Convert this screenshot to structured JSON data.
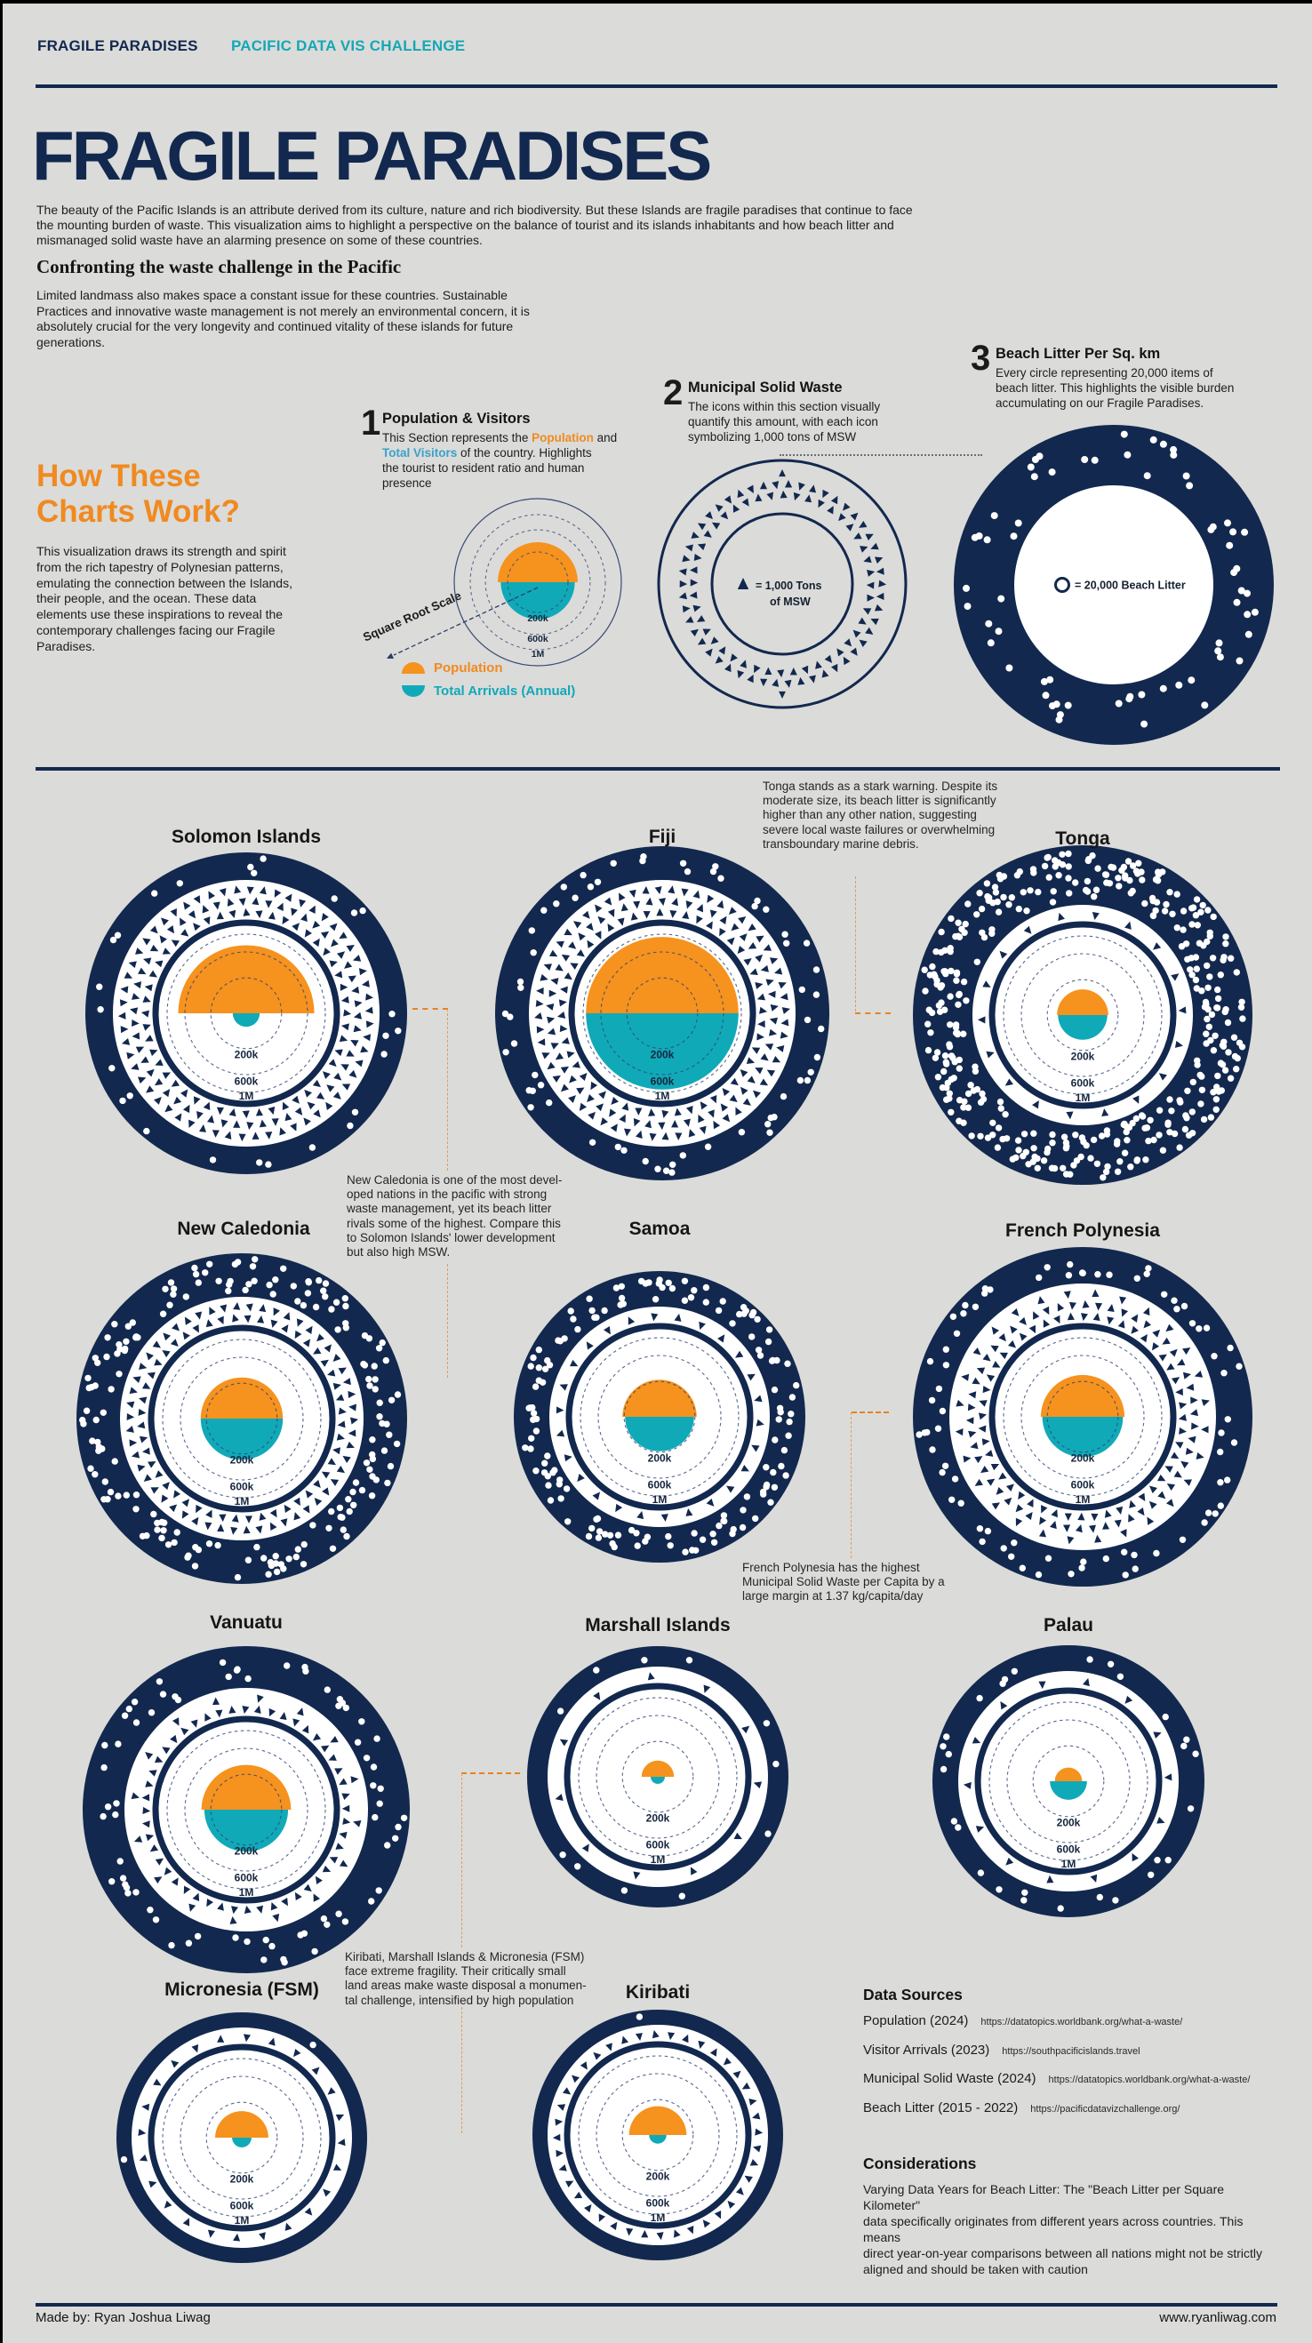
{
  "page": {
    "colors": {
      "navy": "#12284e",
      "orange": "#f6921e",
      "teal": "#10a9b8",
      "background": "#dbdbd9",
      "accent_orange_text": "#f08a20",
      "accent_teal_text": "#14a8b6",
      "connector_orange": "#e8821e"
    }
  },
  "header": {
    "brand": "FRAGILE PARADISES",
    "challenge": "PACIFIC DATA VIS CHALLENGE",
    "title": "FRAGILE PARADISES",
    "intro": "The beauty of the Pacific Islands is an attribute derived from its culture, nature and rich biodiversity. But these Islands are fragile paradises that continue to face\nthe mounting burden of waste. This visualization aims to highlight a perspective on the balance of tourist and its islands inhabitants and how beach litter and\nmismanaged solid waste have an alarming presence on some of these countries."
  },
  "confronting": {
    "heading": "Confronting the waste challenge in the Pacific",
    "body": "Limited landmass also makes space a constant issue for these countries. Sustainable\nPractices and innovative waste management is not merely an environmental concern, it is\nabsolutely crucial for the very longevity and continued vitality of these islands for future\ngenerations."
  },
  "how": {
    "heading": "How These\nCharts Work?",
    "body": "This visualization draws its strength and spirit\nfrom the rich tapestry of Polynesian patterns,\nemulating the connection between the Islands,\ntheir people, and the ocean. These data\nelements use these inspirations to reveal the\ncontemporary challenges facing our Fragile\nParadises."
  },
  "sections": {
    "one": {
      "num": "1",
      "title": "Population & Visitors",
      "b1": "This Section represents the ",
      "pop": "Population",
      "b2": " and\n",
      "vis": "Total Visitors",
      "b3": " of the country. Highlights\nthe tourist to resident ratio and human\npresence"
    },
    "two": {
      "num": "2",
      "title": "Municipal Solid Waste",
      "body": "The icons within this section visually\nquantify this amount, with each icon\nsymbolizing 1,000 tons of MSW"
    },
    "three": {
      "num": "3",
      "title": "Beach Litter Per Sq. km",
      "body": "Every circle representing 20,000 items of\nbeach litter. This highlights the visible burden\naccumulating on our Fragile Paradises."
    }
  },
  "legend": {
    "population": "Population",
    "arrivals": "Total Arrivals (Annual)",
    "sqrt_scale": "Square Root Scale",
    "msw_label": "=  1,000 Tons\nof MSW",
    "litter_label": "=  20,000 Beach Litter"
  },
  "annotations": {
    "tonga": "Tonga stands as a stark warning. Despite its\nmoderate size, its beach litter is significantly\nhigher than any other nation, suggesting\nsevere local waste failures or overwhelming\ntransboundary marine debris.",
    "new_caledonia": "New Caledonia is one of the most devel-\noped nations in the pacific with strong\nwaste management, yet its beach litter\nrivals some of the highest. Compare this\nto Solomon Islands' lower development\nbut also high MSW.",
    "french_polynesia": "French Polynesia has the highest\nMunicipal Solid Waste per Capita by a\nlarge margin at 1.37 kg/capita/day",
    "kiribati": "Kiribati, Marshall Islands & Micronesia (FSM)\nface extreme fragility. Their critically small\nland areas make waste disposal a monumen-\ntal challenge, intensified by high population"
  },
  "chart_data": {
    "type": "radial",
    "scale": "square-root",
    "ring_labels": [
      "200k",
      "600k",
      "1M"
    ],
    "units": {
      "triangle_icon": "1,000 tons of MSW",
      "circle_icon": "20,000 beach litter items",
      "semicircle_top": "Population",
      "semicircle_bottom": "Total Arrivals (Annual)"
    },
    "countries": [
      {
        "id": "solomon",
        "name": "Solomon Islands",
        "population": 740000,
        "arrivals": 29000,
        "msw_icons": 160,
        "msw_tons": 160000,
        "litter_icons": 26,
        "litter_items": 520000
      },
      {
        "id": "fiji",
        "name": "Fiji",
        "population": 930000,
        "arrivals": 929000,
        "msw_icons": 162,
        "msw_tons": 162000,
        "litter_icons": 60,
        "litter_items": 1200000
      },
      {
        "id": "tonga",
        "name": "Tonga",
        "population": 105000,
        "arrivals": 97000,
        "msw_icons": 18,
        "msw_tons": 18000,
        "litter_icons": 380,
        "litter_items": 7600000
      },
      {
        "id": "new_caledonia",
        "name": "New Caledonia",
        "population": 270000,
        "arrivals": 270000,
        "msw_icons": 102,
        "msw_tons": 102000,
        "litter_icons": 170,
        "litter_items": 3400000
      },
      {
        "id": "samoa",
        "name": "Samoa",
        "population": 220000,
        "arrivals": 190000,
        "msw_icons": 26,
        "msw_tons": 26000,
        "litter_icons": 140,
        "litter_items": 2800000
      },
      {
        "id": "french_polynesia",
        "name": "French Polynesia",
        "population": 280000,
        "arrivals": 260000,
        "msw_icons": 130,
        "msw_tons": 130000,
        "litter_icons": 75,
        "litter_items": 1500000
      },
      {
        "id": "vanuatu",
        "name": "Vanuatu",
        "population": 320000,
        "arrivals": 280000,
        "msw_icons": 64,
        "msw_tons": 64000,
        "litter_icons": 70,
        "litter_items": 1400000
      },
      {
        "id": "marshall",
        "name": "Marshall Islands",
        "population": 42000,
        "arrivals": 8000,
        "msw_icons": 11,
        "msw_tons": 11000,
        "litter_icons": 11,
        "litter_items": 220000
      },
      {
        "id": "palau",
        "name": "Palau",
        "population": 30000,
        "arrivals": 55000,
        "msw_icons": 14,
        "msw_tons": 14000,
        "litter_icons": 28,
        "litter_items": 560000
      },
      {
        "id": "micronesia",
        "name": "Micronesia (FSM)",
        "population": 113000,
        "arrivals": 15000,
        "msw_icons": 24,
        "msw_tons": 24000,
        "litter_icons": 2,
        "litter_items": 40000
      },
      {
        "id": "kiribati",
        "name": "Kiribati",
        "population": 132000,
        "arrivals": 12000,
        "msw_icons": 40,
        "msw_tons": 40000,
        "litter_icons": 1,
        "litter_items": 20000
      }
    ],
    "examples": {
      "population_visitors": {
        "population": 350000,
        "arrivals": 300000
      },
      "msw": {
        "triangle_rings": [
          50,
          44
        ]
      },
      "beach_litter": {
        "dots": 64
      }
    }
  },
  "data_sources": {
    "heading": "Data Sources",
    "items": [
      {
        "label": "Population (2024)",
        "url": "https://datatopics.worldbank.org/what-a-waste/"
      },
      {
        "label": "Visitor Arrivals (2023)",
        "url": "https://southpacificislands.travel"
      },
      {
        "label": "Municipal Solid Waste (2024)",
        "url": "https://datatopics.worldbank.org/what-a-waste/"
      },
      {
        "label": "Beach Litter (2015 - 2022)",
        "url": "https://pacificdatavizchallenge.org/"
      }
    ]
  },
  "considerations": {
    "heading": "Considerations",
    "body": "Varying Data Years for Beach Litter: The \"Beach Litter per Square Kilometer\"\ndata specifically originates from different years across countries. This means\ndirect year-on-year comparisons between all nations might not be strictly\naligned and should be taken with caution"
  },
  "footer": {
    "made_by": "Made by: Ryan Joshua Liwag",
    "site": "www.ryanliwag.com"
  }
}
